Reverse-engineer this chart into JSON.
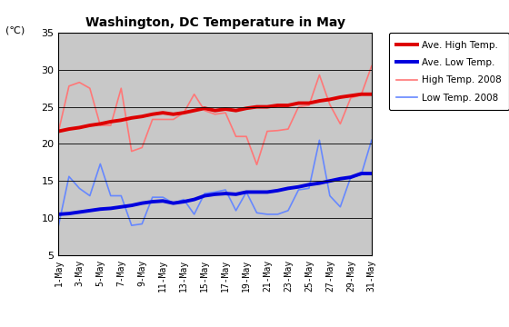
{
  "title": "Washington, DC Temperature in May",
  "ylabel": "(℃)",
  "ylim": [
    5,
    35
  ],
  "yticks": [
    5,
    10,
    15,
    20,
    25,
    30,
    35
  ],
  "days": [
    1,
    2,
    3,
    4,
    5,
    6,
    7,
    8,
    9,
    10,
    11,
    12,
    13,
    14,
    15,
    16,
    17,
    18,
    19,
    20,
    21,
    22,
    23,
    24,
    25,
    26,
    27,
    28,
    29,
    30,
    31
  ],
  "xtick_labels": [
    "1-May",
    "3-May",
    "5-May",
    "7-May",
    "9-May",
    "11-May",
    "13-May",
    "15-May",
    "17-May",
    "19-May",
    "21-May",
    "23-May",
    "25-May",
    "27-May",
    "29-May",
    "31-May"
  ],
  "xtick_positions": [
    1,
    3,
    5,
    7,
    9,
    11,
    13,
    15,
    17,
    19,
    21,
    23,
    25,
    27,
    29,
    31
  ],
  "ave_high": [
    21.7,
    22.0,
    22.2,
    22.5,
    22.7,
    23.0,
    23.2,
    23.5,
    23.7,
    24.0,
    24.2,
    24.0,
    24.2,
    24.5,
    24.8,
    24.5,
    24.7,
    24.5,
    24.8,
    25.0,
    25.0,
    25.2,
    25.2,
    25.5,
    25.5,
    25.8,
    26.0,
    26.3,
    26.5,
    26.7,
    26.7
  ],
  "ave_low": [
    10.5,
    10.6,
    10.8,
    11.0,
    11.2,
    11.3,
    11.5,
    11.7,
    12.0,
    12.2,
    12.3,
    12.0,
    12.2,
    12.5,
    13.0,
    13.2,
    13.3,
    13.2,
    13.5,
    13.5,
    13.5,
    13.7,
    14.0,
    14.2,
    14.5,
    14.7,
    15.0,
    15.3,
    15.5,
    16.0,
    16.0
  ],
  "high_2008": [
    21.7,
    27.8,
    28.3,
    27.5,
    22.5,
    22.5,
    27.5,
    19.0,
    19.5,
    23.3,
    23.3,
    23.3,
    24.2,
    26.7,
    24.5,
    24.0,
    24.2,
    21.0,
    21.0,
    17.2,
    21.7,
    21.8,
    22.0,
    25.0,
    25.2,
    29.3,
    25.3,
    22.7,
    26.2,
    26.6,
    30.5
  ],
  "low_2008": [
    9.0,
    15.6,
    14.0,
    13.0,
    17.3,
    13.0,
    13.0,
    9.0,
    9.2,
    12.8,
    12.8,
    12.0,
    12.5,
    10.5,
    13.3,
    13.5,
    13.8,
    11.0,
    13.5,
    10.7,
    10.5,
    10.5,
    11.0,
    13.8,
    14.0,
    20.5,
    13.0,
    11.5,
    15.5,
    15.8,
    20.5
  ],
  "ave_high_color": "#dd0000",
  "ave_low_color": "#0000dd",
  "high_2008_color": "#ff7777",
  "low_2008_color": "#6688ff",
  "bg_color": "#c8c8c8",
  "fig_bg": "#ffffff",
  "legend_labels": [
    "Ave. High Temp.",
    "Ave. Low Temp.",
    "High Temp. 2008",
    "Low Temp. 2008"
  ]
}
